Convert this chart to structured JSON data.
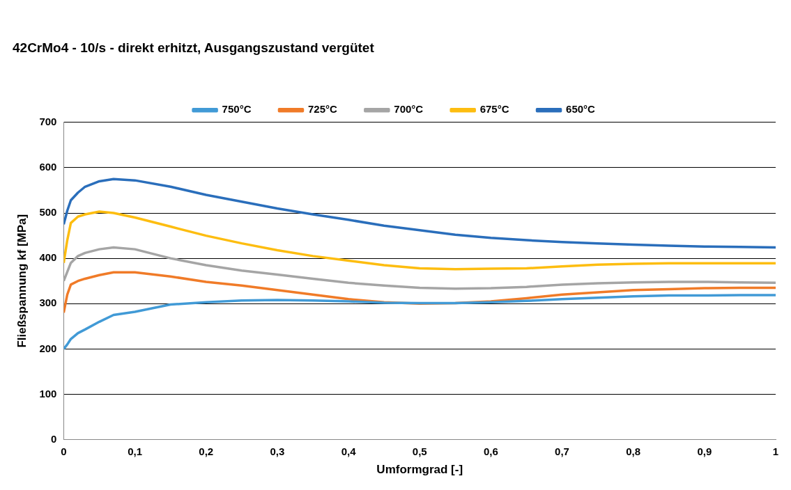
{
  "chart_data": {
    "type": "line",
    "title": "42CrMo4 - 10/s - direkt erhitzt, Ausgangszustand vergütet",
    "xlabel": "Umformgrad [-]",
    "ylabel": "Fließspannung kf [MPa]",
    "x": [
      0,
      0.005,
      0.01,
      0.02,
      0.03,
      0.05,
      0.07,
      0.1,
      0.15,
      0.2,
      0.25,
      0.3,
      0.35,
      0.4,
      0.45,
      0.5,
      0.55,
      0.6,
      0.65,
      0.7,
      0.75,
      0.8,
      0.85,
      0.9,
      0.95,
      1.0
    ],
    "xlim": [
      0,
      1
    ],
    "xticks": [
      {
        "value": 0,
        "label": "0"
      },
      {
        "value": 0.1,
        "label": "0,1"
      },
      {
        "value": 0.2,
        "label": "0,2"
      },
      {
        "value": 0.3,
        "label": "0,3"
      },
      {
        "value": 0.4,
        "label": "0,4"
      },
      {
        "value": 0.5,
        "label": "0,5"
      },
      {
        "value": 0.6,
        "label": "0,6"
      },
      {
        "value": 0.7,
        "label": "0,7"
      },
      {
        "value": 0.8,
        "label": "0,8"
      },
      {
        "value": 0.9,
        "label": "0,9"
      },
      {
        "value": 1,
        "label": "1"
      }
    ],
    "ylim": [
      0,
      700
    ],
    "yticks": [
      0,
      100,
      200,
      300,
      400,
      500,
      600,
      700
    ],
    "grid": "y",
    "legend": "top",
    "marker": "none",
    "line_style": "solid",
    "series": [
      {
        "name": "750°C",
        "color": "#419ad6",
        "values": [
          200,
          210,
          222,
          235,
          243,
          260,
          275,
          282,
          298,
          303,
          307,
          308,
          307,
          305,
          302,
          301,
          301,
          303,
          306,
          310,
          313,
          316,
          318,
          318,
          319,
          319
        ]
      },
      {
        "name": "725°C",
        "color": "#f07b28",
        "values": [
          280,
          320,
          342,
          350,
          355,
          363,
          369,
          369,
          360,
          348,
          340,
          330,
          320,
          310,
          303,
          300,
          301,
          305,
          312,
          320,
          325,
          330,
          332,
          334,
          335,
          335
        ]
      },
      {
        "name": "700°C",
        "color": "#a5a5a5",
        "values": [
          350,
          370,
          390,
          405,
          412,
          420,
          424,
          420,
          400,
          385,
          373,
          364,
          355,
          346,
          340,
          335,
          333,
          334,
          337,
          342,
          345,
          347,
          348,
          348,
          347,
          346
        ]
      },
      {
        "name": "675°C",
        "color": "#fdbd10",
        "values": [
          390,
          440,
          478,
          492,
          497,
          503,
          500,
          490,
          470,
          450,
          433,
          418,
          405,
          395,
          385,
          378,
          376,
          377,
          378,
          382,
          386,
          388,
          389,
          389,
          389,
          389
        ]
      },
      {
        "name": "650°C",
        "color": "#2a6ebb",
        "values": [
          475,
          505,
          528,
          545,
          558,
          570,
          575,
          572,
          558,
          540,
          525,
          510,
          497,
          485,
          472,
          462,
          452,
          445,
          440,
          436,
          433,
          430,
          428,
          426,
          425,
          424
        ]
      }
    ]
  }
}
